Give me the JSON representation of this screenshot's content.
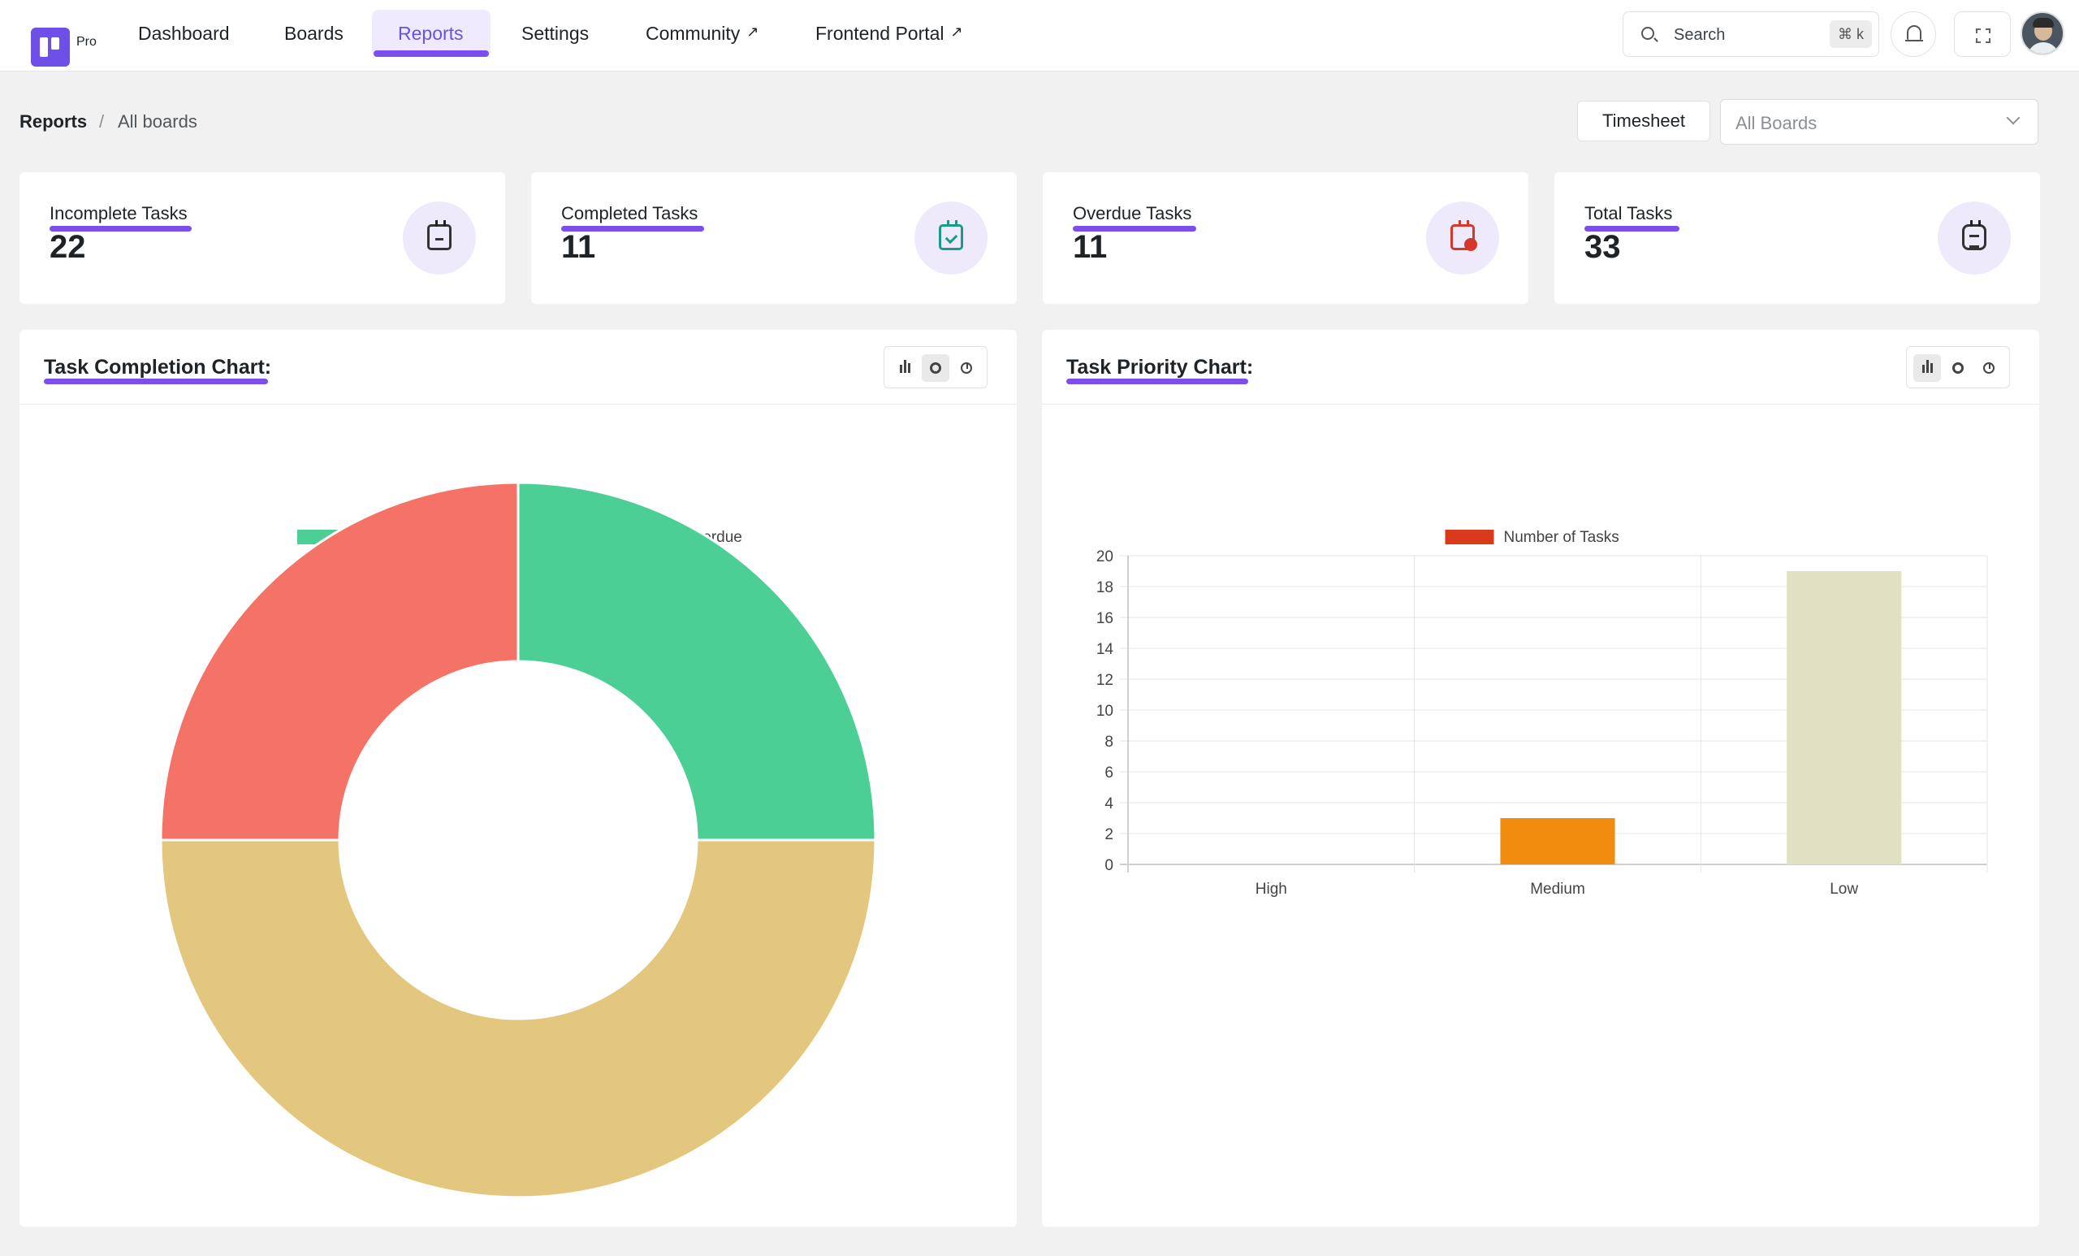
{
  "nav": {
    "brand_suffix": "Pro",
    "items": [
      {
        "label": "Dashboard",
        "external": false
      },
      {
        "label": "Boards",
        "external": false
      },
      {
        "label": "Reports",
        "external": false,
        "active": true
      },
      {
        "label": "Settings",
        "external": false
      },
      {
        "label": "Community",
        "external": true
      },
      {
        "label": "Frontend Portal",
        "external": true
      }
    ],
    "external_glyph": "↗",
    "search": {
      "placeholder": "Search",
      "shortcut": "⌘ k"
    },
    "icons": [
      "search-icon",
      "bell-icon",
      "fullscreen-icon",
      "avatar"
    ]
  },
  "breadcrumb": {
    "root": "Reports",
    "separator": "/",
    "current": "All boards"
  },
  "toolbar": {
    "timesheet_label": "Timesheet",
    "board_select": "All Boards"
  },
  "stats": [
    {
      "label": "Incomplete Tasks",
      "value": "22",
      "icon": "calendar-minus-icon"
    },
    {
      "label": "Completed Tasks",
      "value": "11",
      "icon": "calendar-check-icon"
    },
    {
      "label": "Overdue Tasks",
      "value": "11",
      "icon": "calendar-alert-icon"
    },
    {
      "label": "Total Tasks",
      "value": "33",
      "icon": "document-icon"
    }
  ],
  "panels": {
    "completion_title": "Task Completion Chart:",
    "priority_title": "Task Priority Chart:"
  },
  "colors": {
    "accent": "#7b4fee",
    "completed": "#4bcf94",
    "incomplete": "#e4c77e",
    "overdue": "#f47266",
    "legend_number_of_tasks": "#d93a1c",
    "bar_medium": "#f28c0f",
    "bar_low": "#e0e1c3"
  },
  "chart_data": [
    {
      "type": "pie",
      "variant": "doughnut",
      "labels": [
        "Completed",
        "Incomplete",
        "Overdue"
      ],
      "values": [
        11,
        22,
        11
      ],
      "colors": [
        "#4bcf94",
        "#e4c77e",
        "#f47266"
      ],
      "legend": "top"
    },
    {
      "type": "bar",
      "categories": [
        "High",
        "Medium",
        "Low"
      ],
      "series": [
        {
          "name": "Number of Tasks",
          "values": [
            0,
            3,
            19
          ]
        }
      ],
      "bar_colors": [
        "#d93a1c",
        "#f28c0f",
        "#e0e1c3"
      ],
      "legend_color": "#d93a1c",
      "ylim": [
        0,
        20
      ],
      "yticks": [
        "0",
        "2",
        "4",
        "6",
        "8",
        "10",
        "12",
        "14",
        "16",
        "18",
        "20"
      ],
      "grid": true,
      "legend": "top"
    }
  ]
}
